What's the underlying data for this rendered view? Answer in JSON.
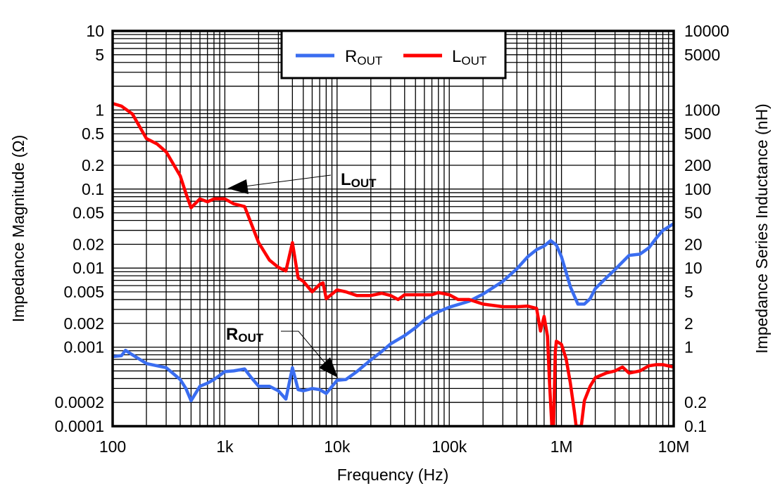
{
  "chart_data": {
    "type": "line",
    "title": "",
    "xlabel": "Frequency (Hz)",
    "ylabel": "Impedance Magnitude (Ω)",
    "y2label": "Impedance Series Inductance (nH)",
    "xscale": "log",
    "yscale": "log",
    "xlim": [
      100,
      10000000
    ],
    "ylim": [
      0.0001,
      10
    ],
    "y2lim": [
      0.1,
      10000
    ],
    "grid": true,
    "legend_position": "top-center",
    "x_ticks": [
      {
        "value": 100,
        "label": "100"
      },
      {
        "value": 1000,
        "label": "1k"
      },
      {
        "value": 10000,
        "label": "10k"
      },
      {
        "value": 100000,
        "label": "100k"
      },
      {
        "value": 1000000,
        "label": "1M"
      },
      {
        "value": 10000000,
        "label": "10M"
      }
    ],
    "y_ticks": [
      {
        "value": 10,
        "label": "10"
      },
      {
        "value": 5,
        "label": "5"
      },
      {
        "value": 1,
        "label": "1"
      },
      {
        "value": 0.5,
        "label": "0.5"
      },
      {
        "value": 0.2,
        "label": "0.2"
      },
      {
        "value": 0.1,
        "label": "0.1"
      },
      {
        "value": 0.05,
        "label": "0.05"
      },
      {
        "value": 0.02,
        "label": "0.02"
      },
      {
        "value": 0.01,
        "label": "0.01"
      },
      {
        "value": 0.005,
        "label": "0.005"
      },
      {
        "value": 0.002,
        "label": "0.002"
      },
      {
        "value": 0.001,
        "label": "0.001"
      },
      {
        "value": 0.0002,
        "label": "0.0002"
      },
      {
        "value": 0.0001,
        "label": "0.0001"
      }
    ],
    "y2_ticks": [
      {
        "value": 10000,
        "label": "10000"
      },
      {
        "value": 5000,
        "label": "5000"
      },
      {
        "value": 1000,
        "label": "1000"
      },
      {
        "value": 500,
        "label": "500"
      },
      {
        "value": 200,
        "label": "200"
      },
      {
        "value": 100,
        "label": "100"
      },
      {
        "value": 50,
        "label": "50"
      },
      {
        "value": 20,
        "label": "20"
      },
      {
        "value": 10,
        "label": "10"
      },
      {
        "value": 5,
        "label": "5"
      },
      {
        "value": 2,
        "label": "2"
      },
      {
        "value": 1,
        "label": "1"
      },
      {
        "value": 0.2,
        "label": "0.2"
      },
      {
        "value": 0.1,
        "label": "0.1"
      }
    ],
    "series": [
      {
        "name": "R_OUT",
        "label_main": "R",
        "label_sub": "OUT",
        "axis": "left",
        "unit": "Ω",
        "color": "#3a6df0",
        "x": [
          100,
          120,
          130,
          150,
          200,
          250,
          300,
          400,
          450,
          500,
          600,
          700,
          800,
          1000,
          1200,
          1500,
          1700,
          2000,
          2500,
          3000,
          3500,
          4000,
          4500,
          5000,
          6000,
          7000,
          8000,
          10000,
          12000,
          15000,
          20000,
          25000,
          30000,
          40000,
          50000,
          60000,
          70000,
          80000,
          100000,
          150000,
          200000,
          300000,
          400000,
          500000,
          600000,
          700000,
          800000,
          900000,
          1000000,
          1200000,
          1400000,
          1600000,
          1800000,
          2000000,
          2500000,
          3000000,
          4000000,
          5000000,
          6000000,
          7000000,
          8000000,
          10000000
        ],
        "y": [
          0.00076,
          0.00078,
          0.00091,
          0.0008,
          0.00062,
          0.00058,
          0.00055,
          0.00039,
          0.0003,
          0.00021,
          0.00032,
          0.00035,
          0.00039,
          0.00049,
          0.0005,
          0.00053,
          0.00042,
          0.00032,
          0.00032,
          0.00028,
          0.00022,
          0.00055,
          0.00029,
          0.00028,
          0.0003,
          0.00029,
          0.00026,
          0.00038,
          0.00039,
          0.00049,
          0.00069,
          0.00088,
          0.0011,
          0.0014,
          0.00176,
          0.0022,
          0.00255,
          0.0028,
          0.0032,
          0.0038,
          0.0047,
          0.0068,
          0.0098,
          0.0139,
          0.0171,
          0.019,
          0.0223,
          0.0196,
          0.0139,
          0.0058,
          0.0035,
          0.0035,
          0.0041,
          0.0055,
          0.0075,
          0.0096,
          0.0145,
          0.015,
          0.018,
          0.024,
          0.03,
          0.0365
        ]
      },
      {
        "name": "L_OUT",
        "label_main": "L",
        "label_sub": "OUT",
        "axis": "right",
        "unit": "nH",
        "color": "#ff0000",
        "x": [
          100,
          120,
          150,
          200,
          250,
          300,
          400,
          450,
          500,
          600,
          700,
          800,
          1000,
          1200,
          1500,
          2000,
          2500,
          3000,
          3500,
          4000,
          4500,
          5000,
          6000,
          7000,
          7500,
          8000,
          10000,
          12000,
          15000,
          20000,
          25000,
          30000,
          35000,
          40000,
          50000,
          60000,
          70000,
          80000,
          100000,
          120000,
          150000,
          200000,
          300000,
          400000,
          500000,
          600000,
          650000,
          700000,
          750000,
          780000,
          820000,
          850000,
          880000,
          900000,
          1000000,
          1100000,
          1200000,
          1300000,
          1350000,
          1500000,
          1600000,
          1800000,
          2000000,
          2500000,
          3000000,
          3500000,
          4000000,
          5000000,
          6000000,
          7000000,
          8000000,
          10000000
        ],
        "y": [
          1210,
          1120,
          890,
          435,
          370,
          295,
          147,
          88,
          58,
          75,
          69,
          75,
          75,
          65,
          60,
          21,
          12.6,
          10.2,
          9.2,
          21,
          7.5,
          6.8,
          5.0,
          6.2,
          6.5,
          4.1,
          5.3,
          5.0,
          4.5,
          4.5,
          4.8,
          4.5,
          4.0,
          4.6,
          4.6,
          4.6,
          4.6,
          4.9,
          4.6,
          4.0,
          4.0,
          3.5,
          3.25,
          3.25,
          3.3,
          3.1,
          1.6,
          2.45,
          1.38,
          0.39,
          0.1,
          0.1,
          0.88,
          1.19,
          1.08,
          0.71,
          0.35,
          0.155,
          0.1,
          0.1,
          0.21,
          0.32,
          0.41,
          0.47,
          0.5,
          0.56,
          0.47,
          0.5,
          0.58,
          0.6,
          0.6,
          0.56
        ]
      }
    ],
    "annotations": [
      {
        "main": "L",
        "sub": "OUT",
        "points_to": "L_OUT"
      },
      {
        "main": "R",
        "sub": "OUT",
        "points_to": "R_OUT"
      }
    ]
  }
}
